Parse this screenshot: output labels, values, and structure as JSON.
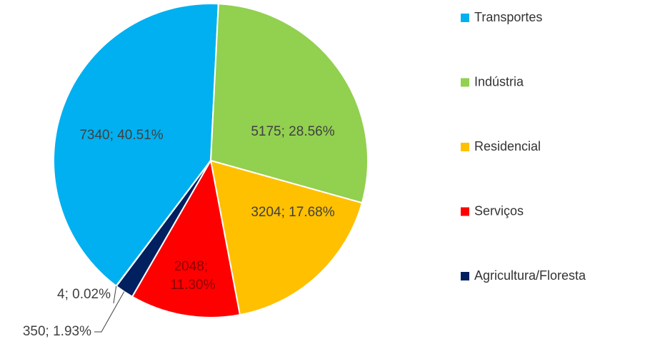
{
  "chart_data": {
    "type": "pie",
    "categories": [
      "Transportes",
      "Indústria",
      "Residencial",
      "Serviços",
      "Agricultura/Floresta",
      null
    ],
    "values": [
      7340,
      5175,
      3204,
      2048,
      350,
      4
    ],
    "value_labels": [
      "7340; 40.51%",
      "5175; 28.56%",
      "3204; 17.68%",
      "2048; 11.30%",
      "350; 1.93%",
      "4; 0.02%"
    ],
    "colors": [
      "#00b0f0",
      "#92d050",
      "#ffc000",
      "#ff0000",
      "#002060",
      "#7f7f7f"
    ],
    "legend": "right"
  }
}
